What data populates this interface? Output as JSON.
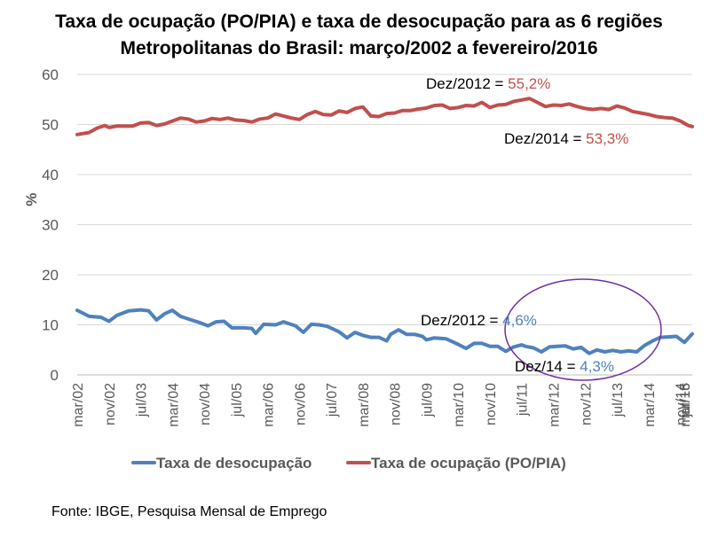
{
  "title_line1": "Taxa de ocupação (PO/PIA) e taxa de desocupação para as 6 regiões",
  "title_line2": "Metropolitanas do Brasil: março/2002 a fevereiro/2016",
  "source": "Fonte: IBGE, Pesquisa Mensal de Emprego",
  "colors": {
    "desocupacao": "#4F81BD",
    "ocupacao": "#C0504D",
    "circle": "#7030A0",
    "axis": "#595959",
    "grid": "#d9d9d9"
  },
  "chart_data": {
    "type": "line",
    "ylabel": "%",
    "ylim": [
      0,
      60
    ],
    "yticks": [
      "0",
      "10",
      "20",
      "30",
      "40",
      "50",
      "60"
    ],
    "grid": true,
    "legend_position": "bottom",
    "x_tick_labels": [
      "mar/02",
      "nov/02",
      "jul/03",
      "mar/04",
      "nov/04",
      "jul/05",
      "mar/06",
      "nov/06",
      "jul/07",
      "mar/08",
      "nov/08",
      "jul/09",
      "mar/10",
      "nov/10",
      "jul/11",
      "mar/12",
      "nov/12",
      "jul/13",
      "mar/14",
      "nov/14",
      "jul/15",
      "mar/16"
    ],
    "series": [
      {
        "name": "Taxa de desocupação",
        "color": "#4F81BD",
        "points": [
          [
            0,
            12.9
          ],
          [
            3,
            11.7
          ],
          [
            6,
            11.5
          ],
          [
            8,
            10.7
          ],
          [
            10,
            11.9
          ],
          [
            13,
            12.8
          ],
          [
            16,
            13.0
          ],
          [
            18,
            12.8
          ],
          [
            20,
            11.0
          ],
          [
            22,
            12.2
          ],
          [
            24,
            12.9
          ],
          [
            26,
            11.7
          ],
          [
            29,
            10.9
          ],
          [
            31,
            10.4
          ],
          [
            33,
            9.8
          ],
          [
            35,
            10.6
          ],
          [
            37,
            10.7
          ],
          [
            39,
            9.4
          ],
          [
            42,
            9.4
          ],
          [
            44,
            9.3
          ],
          [
            45,
            8.3
          ],
          [
            47,
            10.1
          ],
          [
            50,
            10.0
          ],
          [
            52,
            10.6
          ],
          [
            55,
            9.8
          ],
          [
            57,
            8.5
          ],
          [
            59,
            10.1
          ],
          [
            61,
            10.0
          ],
          [
            63,
            9.7
          ],
          [
            66,
            8.6
          ],
          [
            68,
            7.4
          ],
          [
            70,
            8.5
          ],
          [
            72,
            7.9
          ],
          [
            74,
            7.5
          ],
          [
            76,
            7.5
          ],
          [
            78,
            6.8
          ],
          [
            79,
            8.1
          ],
          [
            81,
            9.0
          ],
          [
            83,
            8.1
          ],
          [
            85,
            8.1
          ],
          [
            87,
            7.7
          ],
          [
            88,
            7.0
          ],
          [
            90,
            7.4
          ],
          [
            93,
            7.2
          ],
          [
            96,
            6.1
          ],
          [
            98,
            5.3
          ],
          [
            100,
            6.3
          ],
          [
            102,
            6.3
          ],
          [
            104,
            5.7
          ],
          [
            106,
            5.7
          ],
          [
            108,
            4.7
          ],
          [
            110,
            5.6
          ],
          [
            112,
            6.0
          ],
          [
            113,
            5.7
          ],
          [
            115,
            5.4
          ],
          [
            117,
            4.6
          ],
          [
            119,
            5.6
          ],
          [
            121,
            5.7
          ],
          [
            123,
            5.8
          ],
          [
            125,
            5.2
          ],
          [
            127,
            5.5
          ],
          [
            129,
            4.3
          ],
          [
            131,
            5.0
          ],
          [
            133,
            4.6
          ],
          [
            135,
            4.9
          ],
          [
            137,
            4.6
          ],
          [
            139,
            4.8
          ],
          [
            141,
            4.6
          ],
          [
            143,
            5.9
          ],
          [
            145,
            6.8
          ],
          [
            147,
            7.5
          ],
          [
            149,
            7.6
          ],
          [
            151,
            7.7
          ],
          [
            153,
            6.5
          ],
          [
            155,
            8.2
          ]
        ]
      },
      {
        "name": "Taxa de ocupação (PO/PIA)",
        "color": "#C0504D",
        "points": [
          [
            0,
            48.0
          ],
          [
            3,
            48.4
          ],
          [
            5,
            49.3
          ],
          [
            7,
            49.8
          ],
          [
            8,
            49.4
          ],
          [
            10,
            49.7
          ],
          [
            14,
            49.7
          ],
          [
            16,
            50.3
          ],
          [
            18,
            50.4
          ],
          [
            20,
            49.8
          ],
          [
            22,
            50.1
          ],
          [
            26,
            51.3
          ],
          [
            28,
            51.1
          ],
          [
            30,
            50.5
          ],
          [
            32,
            50.7
          ],
          [
            34,
            51.2
          ],
          [
            36,
            51.0
          ],
          [
            38,
            51.3
          ],
          [
            40,
            50.9
          ],
          [
            42,
            50.8
          ],
          [
            44,
            50.5
          ],
          [
            46,
            51.1
          ],
          [
            48,
            51.3
          ],
          [
            50,
            52.1
          ],
          [
            52,
            51.7
          ],
          [
            54,
            51.3
          ],
          [
            56,
            51.0
          ],
          [
            58,
            52.0
          ],
          [
            60,
            52.6
          ],
          [
            62,
            52.0
          ],
          [
            64,
            51.9
          ],
          [
            66,
            52.7
          ],
          [
            68,
            52.4
          ],
          [
            70,
            53.2
          ],
          [
            72,
            53.5
          ],
          [
            74,
            51.7
          ],
          [
            76,
            51.6
          ],
          [
            78,
            52.2
          ],
          [
            80,
            52.3
          ],
          [
            82,
            52.8
          ],
          [
            84,
            52.8
          ],
          [
            86,
            53.1
          ],
          [
            88,
            53.3
          ],
          [
            90,
            53.8
          ],
          [
            92,
            53.9
          ],
          [
            94,
            53.2
          ],
          [
            96,
            53.4
          ],
          [
            98,
            53.8
          ],
          [
            100,
            53.7
          ],
          [
            102,
            54.4
          ],
          [
            104,
            53.4
          ],
          [
            106,
            53.9
          ],
          [
            108,
            54.0
          ],
          [
            110,
            54.6
          ],
          [
            112,
            54.9
          ],
          [
            114,
            55.2
          ],
          [
            116,
            54.4
          ],
          [
            118,
            53.6
          ],
          [
            120,
            53.9
          ],
          [
            122,
            53.8
          ],
          [
            124,
            54.1
          ],
          [
            126,
            53.6
          ],
          [
            128,
            53.2
          ],
          [
            130,
            53.0
          ],
          [
            132,
            53.2
          ],
          [
            134,
            53.0
          ],
          [
            136,
            53.7
          ],
          [
            138,
            53.3
          ],
          [
            140,
            52.6
          ],
          [
            142,
            52.3
          ],
          [
            144,
            52.0
          ],
          [
            146,
            51.6
          ],
          [
            148,
            51.4
          ],
          [
            150,
            51.3
          ],
          [
            152,
            50.7
          ],
          [
            154,
            49.8
          ],
          [
            155,
            49.6
          ]
        ]
      }
    ],
    "annotations": [
      {
        "label": "Dez/2012 = ",
        "value": "55,2%",
        "series": "Taxa de ocupação (PO/PIA)"
      },
      {
        "label": "Dez/2014 = ",
        "value": "53,3%",
        "series": "Taxa de ocupação (PO/PIA)"
      },
      {
        "label": "Dez/2012 = ",
        "value": "4,6%",
        "series": "Taxa de desocupação"
      },
      {
        "label": "Dez/14 = ",
        "value": "4,3%",
        "series": "Taxa de desocupação"
      }
    ]
  }
}
